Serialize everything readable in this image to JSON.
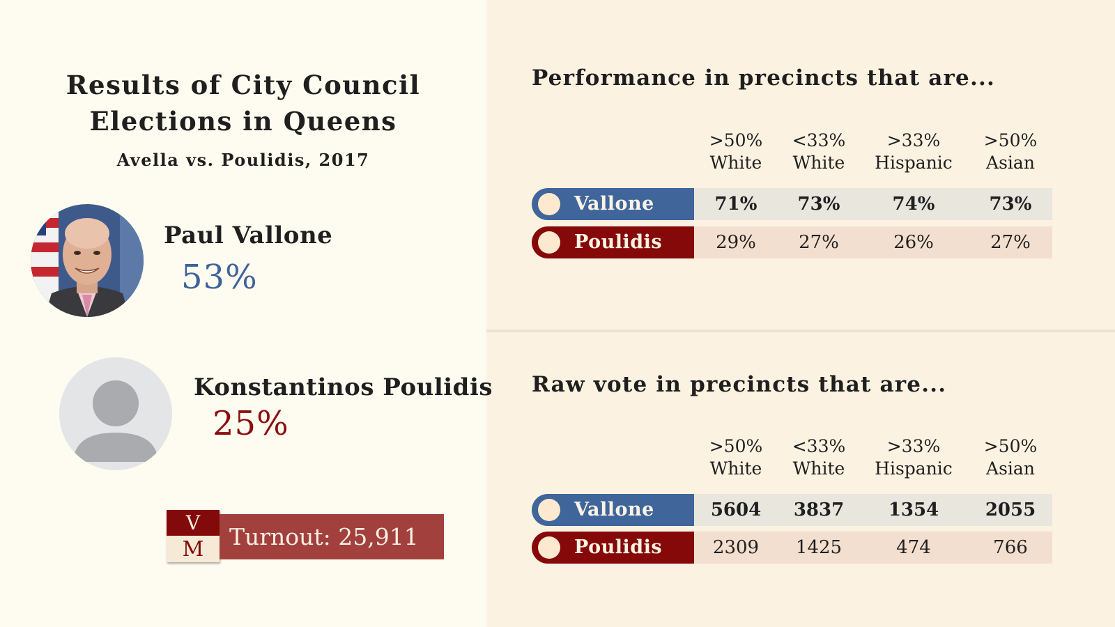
{
  "title": {
    "line1": "Results of City Council",
    "line2": "Elections in Queens",
    "subtitle": "Avella vs. Poulidis, 2017"
  },
  "candidates": [
    {
      "name": "Paul Vallone",
      "percent": "53%",
      "color": "#3e6299"
    },
    {
      "name": "Konstantinos Poulidis",
      "percent": "25%",
      "color": "#8b0d0d"
    }
  ],
  "logo": {
    "top": "V",
    "bottom": "M"
  },
  "turnout": "Turnout: 25,911",
  "colors": {
    "vallone": "#3f659b",
    "poulidis": "#860909",
    "left_bg": "#fefcf0",
    "right_bg": "#fbf2e1"
  },
  "chart_data": [
    {
      "type": "table",
      "title": "Performance in precincts that are...",
      "columns": [
        {
          "top": ">50%",
          "bottom": "White"
        },
        {
          "top": "<33%",
          "bottom": "White"
        },
        {
          "top": ">33%",
          "bottom": "Hispanic"
        },
        {
          "top": ">50%",
          "bottom": "Asian"
        }
      ],
      "rows": [
        {
          "name": "Vallone",
          "values": [
            "71%",
            "73%",
            "74%",
            "73%"
          ]
        },
        {
          "name": "Poulidis",
          "values": [
            "29%",
            "27%",
            "26%",
            "27%"
          ]
        }
      ]
    },
    {
      "type": "table",
      "title": "Raw vote in precincts that are...",
      "columns": [
        {
          "top": ">50%",
          "bottom": "White"
        },
        {
          "top": "<33%",
          "bottom": "White"
        },
        {
          "top": ">33%",
          "bottom": "Hispanic"
        },
        {
          "top": ">50%",
          "bottom": "Asian"
        }
      ],
      "rows": [
        {
          "name": "Vallone",
          "values": [
            "5604",
            "3837",
            "1354",
            "2055"
          ]
        },
        {
          "name": "Poulidis",
          "values": [
            "2309",
            "1425",
            "474",
            "766"
          ]
        }
      ]
    }
  ]
}
